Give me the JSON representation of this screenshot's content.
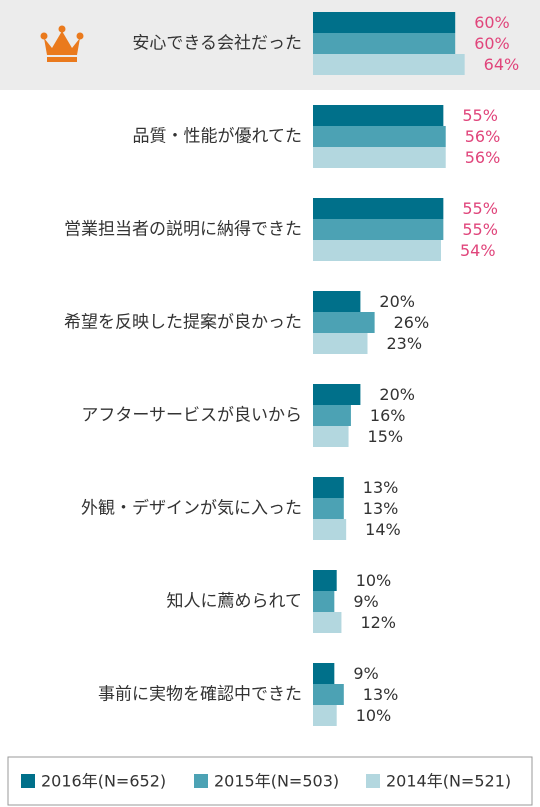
{
  "chart_data": {
    "type": "hbar",
    "categories": [
      "安心できる会社だった",
      "品質・性能が優れてた",
      "営業担当者の説明に納得できた",
      "希望を反映した提案が良かった",
      "アフターサービスが良いから",
      "外観・デザインが気に入った",
      "知人に薦められて",
      "事前に実物を確認中できた"
    ],
    "series": [
      {
        "name": "2016年(N=652)",
        "color": "#00708a",
        "values": [
          60,
          55,
          55,
          20,
          20,
          13,
          10,
          9
        ],
        "value_labels": [
          "60%",
          "55%",
          "55%",
          "20%",
          "20%",
          "13%",
          "10%",
          "9%"
        ]
      },
      {
        "name": "2015年(N=503)",
        "color": "#4ca2b4",
        "values": [
          60,
          56,
          55,
          26,
          16,
          13,
          9,
          13
        ],
        "value_labels": [
          "60%",
          "56%",
          "55%",
          "26%",
          "16%",
          "13%",
          "9%",
          "13%"
        ]
      },
      {
        "name": "2014年(N=521)",
        "color": "#b3d7df",
        "values": [
          64,
          56,
          54,
          23,
          15,
          14,
          12,
          10
        ],
        "value_labels": [
          "64%",
          "56%",
          "54%",
          "23%",
          "15%",
          "14%",
          "12%",
          "10%"
        ]
      }
    ],
    "legend": "bottom"
  }
}
